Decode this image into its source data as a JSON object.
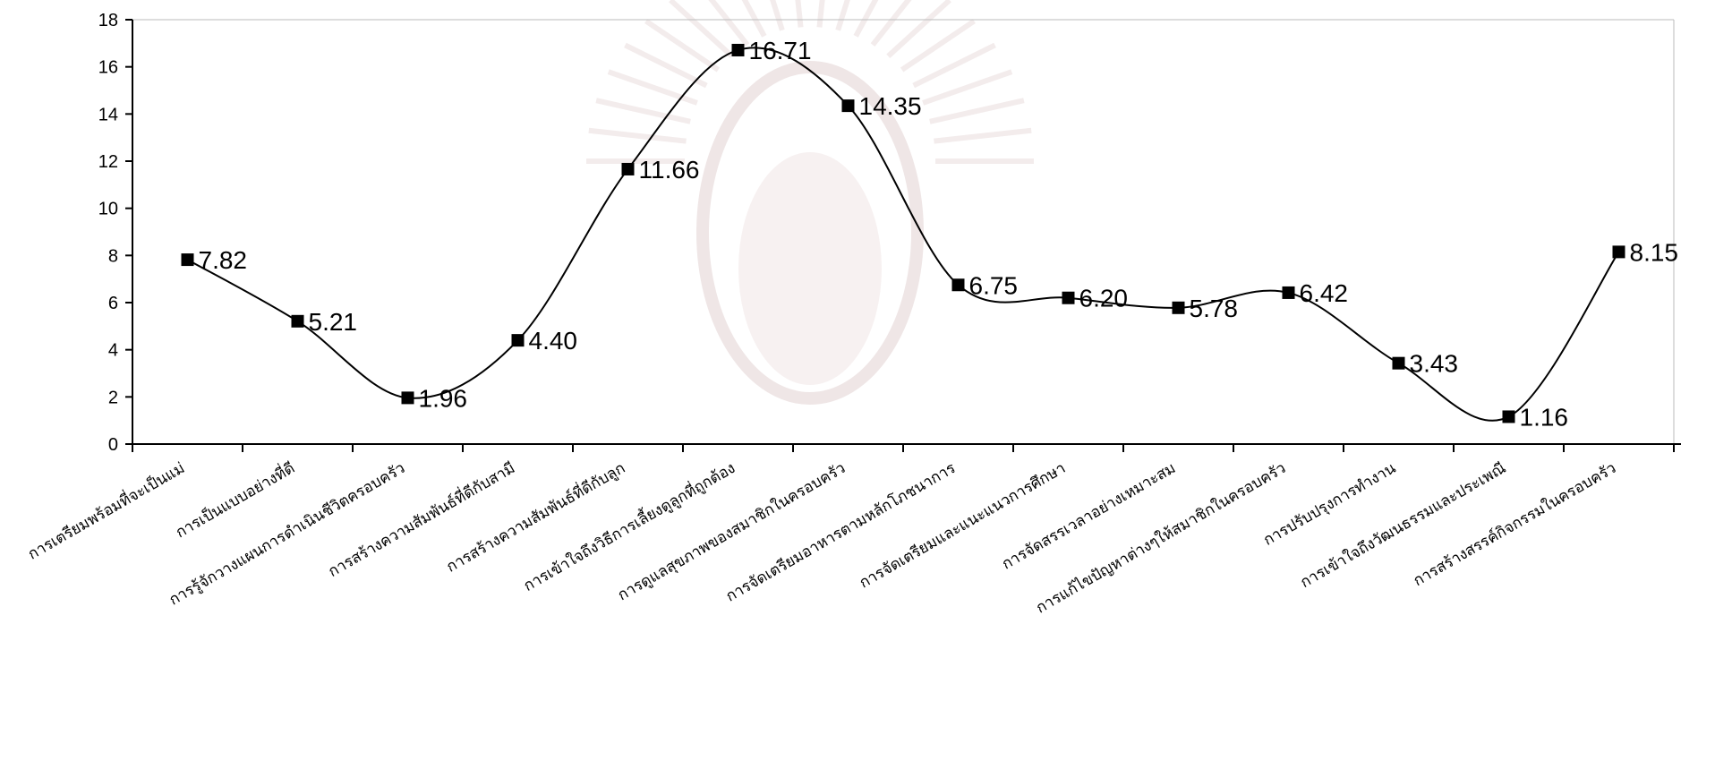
{
  "chart_data": {
    "type": "line",
    "title": "",
    "xlabel": "",
    "ylabel": "",
    "ylim": [
      0,
      18
    ],
    "yticks": [
      0,
      2,
      4,
      6,
      8,
      10,
      12,
      14,
      16,
      18
    ],
    "smooth": true,
    "grid": false,
    "legend": "none",
    "marker": "square",
    "colors": {
      "line": "#000000",
      "marker": "#000000"
    },
    "categories": [
      "การเตรียมพร้อมที่จะเป็นแม่",
      "การเป็นแบบอย่างที่ดี",
      "การรู้จักวางแผนการดำเนินชีวิตครอบครัว",
      "การสร้างความสัมพันธ์ที่ดีกับสามี",
      "การสร้างความสัมพันธ์ที่ดีกับลูก",
      "การเข้าใจถึงวิธีการเลี้ยงดูลูกที่ถูกต้อง",
      "การดูแลสุขภาพของสมาชิกในครอบครัว",
      "การจัดเตรียมอาหารตามหลักโภชนาการ",
      "การจัดเตรียมและแนะแนวการศึกษา",
      "การจัดสรรเวลาอย่างเหมาะสม",
      "การแก้ไขปัญหาต่างๆให้สมาชิกในครอบครัว",
      "การปรับปรุงการทำงาน",
      "การเข้าใจถึงวัฒนธรรมและประเพณี",
      "การสร้างสรรค์กิจกรรมในครอบครัว"
    ],
    "series": [
      {
        "values": [
          7.82,
          5.21,
          1.96,
          4.4,
          11.66,
          16.71,
          14.35,
          6.75,
          6.2,
          5.78,
          6.42,
          3.43,
          1.16,
          8.15
        ],
        "labels": [
          "7.82",
          "5.21",
          "1.96",
          "4.40",
          "11.66",
          "16.71",
          "14.35",
          "6.75",
          "6.20",
          "5.78",
          "6.42",
          "3.43",
          "1.16",
          "8.15"
        ]
      }
    ]
  }
}
